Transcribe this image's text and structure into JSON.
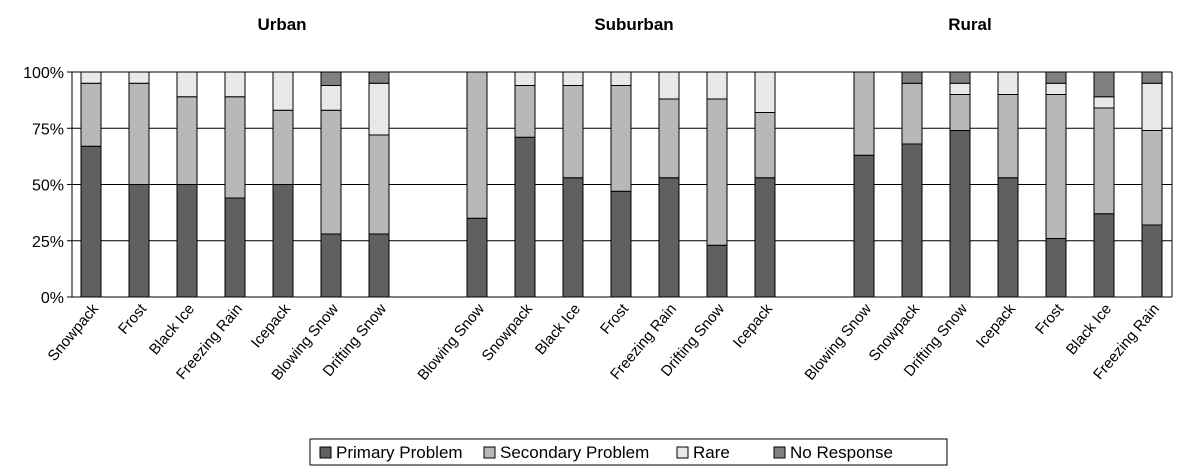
{
  "chart_data": {
    "type": "bar",
    "stacked": true,
    "percent_stacked": true,
    "ylim": [
      0,
      100
    ],
    "yticks": [
      "0%",
      "25%",
      "50%",
      "75%",
      "100%"
    ],
    "grid": true,
    "legend_position": "bottom",
    "series_meta": [
      {
        "name": "Primary Problem",
        "color": "#606060"
      },
      {
        "name": "Secondary Problem",
        "color": "#b8b8b8"
      },
      {
        "name": "Rare",
        "color": "#e8e8e8"
      },
      {
        "name": "No Response",
        "color": "#808080"
      }
    ],
    "panels": [
      {
        "title": "Urban",
        "categories": [
          "Snowpack",
          "Frost",
          "Black Ice",
          "Freezing Rain",
          "Icepack",
          "Blowing Snow",
          "Drifting Snow"
        ],
        "series": [
          {
            "name": "Primary Problem",
            "values": [
              67,
              50,
              50,
              44,
              50,
              28,
              28
            ]
          },
          {
            "name": "Secondary Problem",
            "values": [
              28,
              45,
              39,
              45,
              33,
              55,
              44
            ]
          },
          {
            "name": "Rare",
            "values": [
              5,
              5,
              11,
              11,
              17,
              11,
              23
            ]
          },
          {
            "name": "No Response",
            "values": [
              0,
              0,
              0,
              0,
              0,
              6,
              5
            ]
          }
        ]
      },
      {
        "title": "Suburban",
        "categories": [
          "Blowing Snow",
          "Snowpack",
          "Black Ice",
          "Frost",
          "Freezing Rain",
          "Drifting Snow",
          "Icepack"
        ],
        "series": [
          {
            "name": "Primary Problem",
            "values": [
              35,
              71,
              53,
              47,
              53,
              23,
              53
            ]
          },
          {
            "name": "Secondary Problem",
            "values": [
              65,
              23,
              41,
              47,
              35,
              65,
              29
            ]
          },
          {
            "name": "Rare",
            "values": [
              0,
              6,
              6,
              6,
              12,
              12,
              18
            ]
          },
          {
            "name": "No Response",
            "values": [
              0,
              0,
              0,
              0,
              0,
              0,
              0
            ]
          }
        ]
      },
      {
        "title": "Rural",
        "categories": [
          "Blowing Snow",
          "Snowpack",
          "Drifting Snow",
          "Icepack",
          "Frost",
          "Black Ice",
          "Freezing Rain"
        ],
        "series": [
          {
            "name": "Primary Problem",
            "values": [
              63,
              68,
              74,
              53,
              26,
              37,
              32
            ]
          },
          {
            "name": "Secondary Problem",
            "values": [
              37,
              27,
              16,
              37,
              64,
              47,
              42
            ]
          },
          {
            "name": "Rare",
            "values": [
              0,
              0,
              5,
              10,
              5,
              5,
              21
            ]
          },
          {
            "name": "No Response",
            "values": [
              0,
              5,
              5,
              0,
              5,
              11,
              5
            ]
          }
        ]
      }
    ]
  }
}
